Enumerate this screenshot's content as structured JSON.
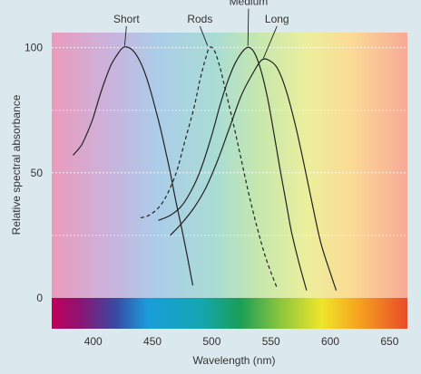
{
  "chart_data": {
    "type": "line",
    "title": "",
    "xlabel": "Wavelength (nm)",
    "ylabel": "Relative spectral absorbance",
    "xlim": [
      365,
      665
    ],
    "ylim": [
      0,
      106
    ],
    "x_ticks": [
      400,
      450,
      500,
      550,
      600,
      650
    ],
    "y_ticks": [
      0,
      50,
      100
    ],
    "grid": true,
    "legend": "none",
    "series": [
      {
        "name": "Short",
        "color": "#222222",
        "dash": "solid",
        "label_pos": [
          428,
          110
        ],
        "points": [
          [
            383,
            57
          ],
          [
            390,
            61
          ],
          [
            395,
            66
          ],
          [
            400,
            72
          ],
          [
            405,
            80
          ],
          [
            410,
            87
          ],
          [
            415,
            93
          ],
          [
            420,
            97
          ],
          [
            425,
            100
          ],
          [
            430,
            100
          ],
          [
            435,
            98
          ],
          [
            440,
            94
          ],
          [
            445,
            88
          ],
          [
            450,
            80
          ],
          [
            455,
            71
          ],
          [
            460,
            61
          ],
          [
            465,
            50
          ],
          [
            470,
            38
          ],
          [
            475,
            27
          ],
          [
            480,
            15
          ],
          [
            484,
            5
          ]
        ]
      },
      {
        "name": "Rods",
        "color": "#222222",
        "dash": "dashed",
        "label_pos": [
          490,
          110
        ],
        "points": [
          [
            440,
            32
          ],
          [
            447,
            33
          ],
          [
            455,
            36
          ],
          [
            462,
            41
          ],
          [
            470,
            50
          ],
          [
            477,
            62
          ],
          [
            485,
            76
          ],
          [
            490,
            87
          ],
          [
            495,
            96
          ],
          [
            498,
            100
          ],
          [
            502,
            99
          ],
          [
            507,
            92
          ],
          [
            512,
            82
          ],
          [
            518,
            70
          ],
          [
            525,
            55
          ],
          [
            532,
            40
          ],
          [
            540,
            25
          ],
          [
            547,
            14
          ],
          [
            555,
            4
          ]
        ]
      },
      {
        "name": "Medium",
        "color": "#222222",
        "dash": "solid",
        "label_pos": [
          531,
          117
        ],
        "points": [
          [
            455,
            31
          ],
          [
            465,
            33
          ],
          [
            475,
            37
          ],
          [
            485,
            45
          ],
          [
            492,
            53
          ],
          [
            500,
            65
          ],
          [
            507,
            77
          ],
          [
            513,
            86
          ],
          [
            520,
            94
          ],
          [
            527,
            99
          ],
          [
            532,
            100
          ],
          [
            537,
            97
          ],
          [
            542,
            90
          ],
          [
            547,
            80
          ],
          [
            552,
            67
          ],
          [
            557,
            53
          ],
          [
            562,
            40
          ],
          [
            567,
            27
          ],
          [
            573,
            15
          ],
          [
            580,
            3
          ]
        ]
      },
      {
        "name": "Long",
        "color": "#222222",
        "dash": "solid",
        "label_pos": [
          555,
          110
        ],
        "points": [
          [
            465,
            25
          ],
          [
            475,
            30
          ],
          [
            485,
            36
          ],
          [
            495,
            44
          ],
          [
            505,
            55
          ],
          [
            515,
            68
          ],
          [
            525,
            81
          ],
          [
            535,
            90
          ],
          [
            542,
            95
          ],
          [
            548,
            95
          ],
          [
            555,
            92
          ],
          [
            562,
            84
          ],
          [
            570,
            70
          ],
          [
            578,
            53
          ],
          [
            585,
            37
          ],
          [
            592,
            22
          ],
          [
            600,
            10
          ],
          [
            605,
            3
          ]
        ]
      }
    ]
  }
}
